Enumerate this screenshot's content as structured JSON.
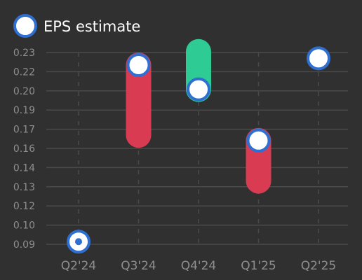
{
  "chart_data": {
    "type": "range",
    "legend": {
      "label": "EPS estimate",
      "placement": "top-left"
    },
    "categories": [
      "Q2'24",
      "Q3'24",
      "Q4'24",
      "Q1'25",
      "Q2'25"
    ],
    "y_ticks": [
      "0.09",
      "0.10",
      "0.12",
      "0.13",
      "0.14",
      "0.16",
      "0.17",
      "0.19",
      "0.20",
      "0.22",
      "0.23"
    ],
    "ylim": [
      0.087,
      0.235
    ],
    "grid": true,
    "estimates": [
      0.09,
      0.221,
      0.203,
      0.165,
      0.226
    ],
    "ranges": [
      {
        "category": "Q3'24",
        "low": 0.169,
        "high": 0.221,
        "direction": "down"
      },
      {
        "category": "Q4'24",
        "low": 0.203,
        "high": 0.231,
        "direction": "up"
      },
      {
        "category": "Q1'25",
        "low": 0.135,
        "high": 0.165,
        "direction": "down"
      }
    ],
    "estimate_styles": [
      "filled-dot",
      "circle",
      "circle",
      "circle",
      "circle"
    ],
    "colors": {
      "background": "#303030",
      "grid": "#4a4a4a",
      "tick_text": "#8e8e8e",
      "marker_stroke": "#2f6fd1",
      "marker_fill": "#ffffff",
      "down": "#d93c52",
      "up": "#2ecc94"
    }
  }
}
